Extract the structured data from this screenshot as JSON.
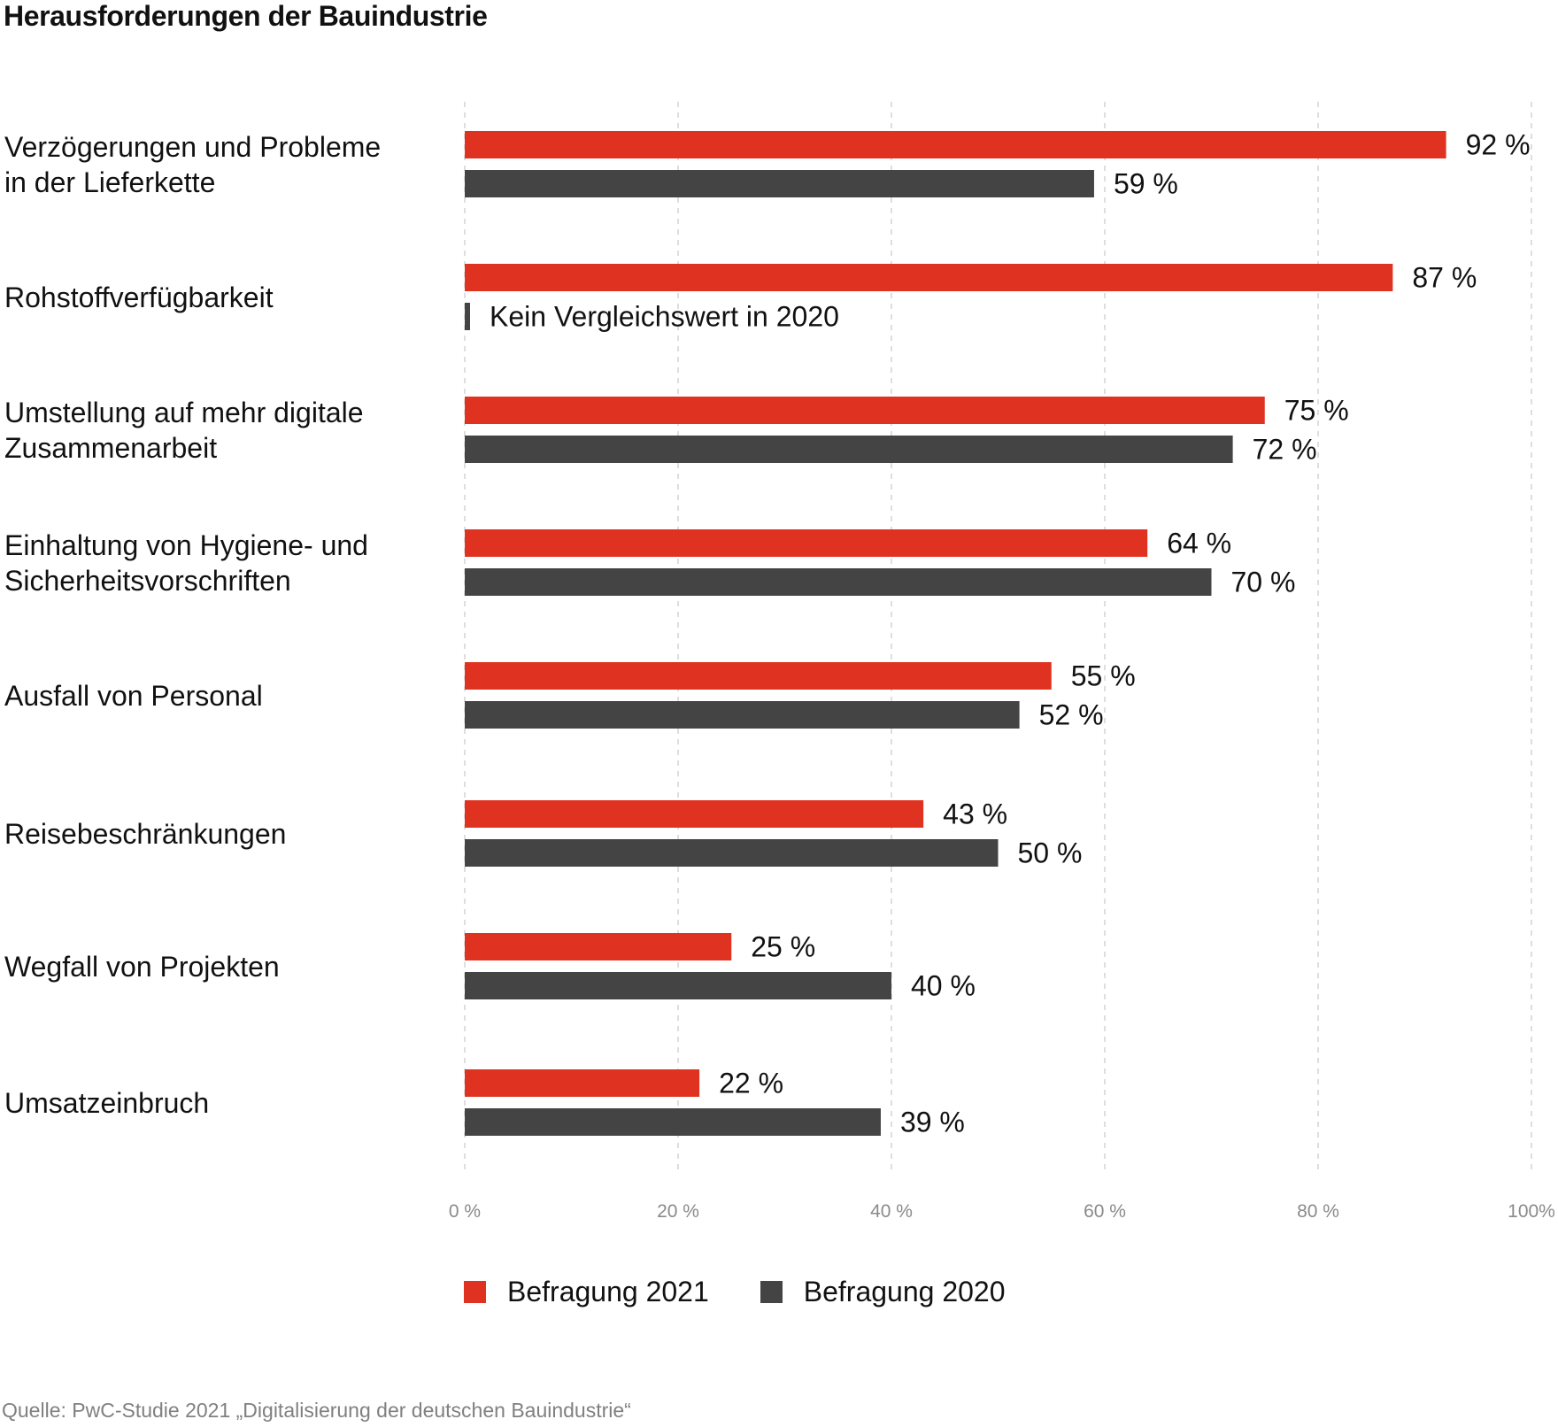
{
  "title": "Herausforderungen der Bauindustrie",
  "colors": {
    "Befragung 2021": "#e03220",
    "Befragung 2020": "#444444"
  },
  "chart_data": {
    "type": "bar",
    "orientation": "horizontal",
    "title": "Herausforderungen der Bauindustrie",
    "categories": [
      [
        "Verzögerungen und Probleme",
        "in der Lieferkette"
      ],
      [
        "Rohstoffverfügbarkeit"
      ],
      [
        "Umstellung auf mehr digitale",
        "Zusammenarbeit"
      ],
      [
        "Einhaltung von Hygiene- und",
        "Sicherheitsvorschriften"
      ],
      [
        "Ausfall von Personal"
      ],
      [
        "Reisebeschränkungen"
      ],
      [
        "Wegfall von Projekten"
      ],
      [
        "Umsatzeinbruch"
      ]
    ],
    "series": [
      {
        "name": "Befragung 2021",
        "color": "#e03220",
        "values": [
          92,
          87,
          75,
          64,
          55,
          43,
          25,
          22
        ],
        "labels": [
          "92 %",
          "87 %",
          "75 %",
          "64 %",
          "55 %",
          "43 %",
          "25 %",
          "22 %"
        ]
      },
      {
        "name": "Befragung 2020",
        "color": "#444444",
        "values": [
          59,
          null,
          72,
          70,
          52,
          50,
          40,
          39
        ],
        "labels": [
          "59 %",
          "Kein Vergleichswert in 2020",
          "72 %",
          "70 %",
          "52 %",
          "50 %",
          "40 %",
          "39 %"
        ]
      }
    ],
    "xlim": [
      0,
      100
    ],
    "xticks": [
      0,
      20,
      40,
      60,
      80,
      100
    ],
    "xtick_labels": [
      "0 %",
      "20 %",
      "40 %",
      "60 %",
      "80 %",
      "100%"
    ],
    "grid": true,
    "legend_position": "bottom"
  },
  "legend": [
    {
      "label": "Befragung 2021",
      "color": "#e03220"
    },
    {
      "label": "Befragung 2020",
      "color": "#444444"
    }
  ],
  "source": "Quelle: PwC-Studie 2021 „Digitalisierung der deutschen Bauindustrie“"
}
